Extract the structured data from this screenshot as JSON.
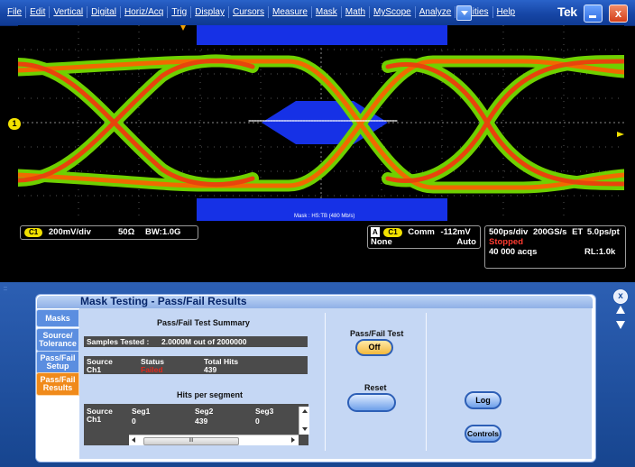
{
  "menu": {
    "items": [
      "File",
      "Edit",
      "Vertical",
      "Digital",
      "Horiz/Acq",
      "Trig",
      "Display",
      "Cursors",
      "Measure",
      "Mask",
      "Math",
      "MyScope",
      "Analyze",
      "Utilities",
      "Help"
    ],
    "brand": "Tek"
  },
  "waveform": {
    "channel_marker": "1",
    "mask_label": "Mask : HS:TB (480 Mb/s)"
  },
  "readout": {
    "channel": "C1",
    "volts_div": "200mV/div",
    "impedance": "50Ω",
    "bandwidth": "BW:1.0G",
    "trigger_A": "A",
    "trigger_channel": "C1",
    "trigger_coupling": "Comm",
    "trigger_level": "-112mV",
    "trigger_mode1": "None",
    "trigger_mode2": "Auto",
    "timebase": "500ps/div",
    "sample_rate": "200GS/s",
    "et": "ET",
    "per_point": "5.0ps/pt",
    "state": "Stopped",
    "acqs": "40 000 acqs",
    "record_length": "RL:1.0k",
    "state_color": "#ff3b30"
  },
  "mask_window": {
    "title": "Mask Testing - Pass/Fail Results",
    "tabs": [
      "Masks",
      "Source/ Tolerance",
      "Pass/Fail Setup",
      "Pass/Fail Results"
    ],
    "active_tab": 3,
    "summary_title": "Pass/Fail Test Summary",
    "samples_label": "Samples Tested :",
    "samples_value": "2.0000M out of 2000000",
    "results_headers": [
      "Source",
      "Status",
      "Total Hits"
    ],
    "results_row": {
      "source": "Ch1",
      "status": "Failed",
      "total_hits": "439"
    },
    "status_color": "#e2261b",
    "hits_title": "Hits per segment",
    "hits_headers": [
      "Source",
      "Seg1",
      "Seg2",
      "Seg3"
    ],
    "hits_row": {
      "source": "Ch1",
      "seg1": "0",
      "seg2": "439",
      "seg3": "0"
    },
    "passfail_test_label": "Pass/Fail Test",
    "passfail_button": "Off",
    "reset_label": "Reset",
    "log_button": "Log",
    "controls_button": "Controls",
    "scroll_thumb": "III"
  }
}
